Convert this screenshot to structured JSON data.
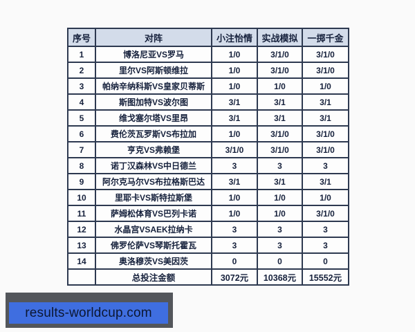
{
  "table": {
    "columns": [
      "序号",
      "对阵",
      "小注怡情",
      "实战模拟",
      "一掷千金"
    ],
    "rows": [
      [
        "1",
        "博洛尼亚VS罗马",
        "1/0",
        "3/1/0",
        "3/1/0"
      ],
      [
        "2",
        "里尔VS阿斯顿维拉",
        "1/0",
        "3/1/0",
        "3/1/0"
      ],
      [
        "3",
        "帕纳辛纳科斯VS皇家贝蒂斯",
        "1/0",
        "1/0",
        "1/0"
      ],
      [
        "4",
        "斯图加特VS波尔图",
        "3/1",
        "3/1",
        "3/1"
      ],
      [
        "5",
        "维戈塞尔塔VS里昂",
        "3/1",
        "3/1",
        "3/1"
      ],
      [
        "6",
        "费伦茨瓦罗斯VS布拉加",
        "1/0",
        "3/1/0",
        "3/1/0"
      ],
      [
        "7",
        "亨克VS弗赖堡",
        "3/1/0",
        "3/1/0",
        "3/1/0"
      ],
      [
        "8",
        "诺丁汉森林VS中日德兰",
        "3",
        "3",
        "3"
      ],
      [
        "9",
        "阿尔克马尔VS布拉格斯巴达",
        "3/1",
        "3/1",
        "3/1"
      ],
      [
        "10",
        "里耶卡VS斯特拉斯堡",
        "1/0",
        "1/0",
        "1/0"
      ],
      [
        "11",
        "萨姆松体育VS巴列卡诺",
        "1/0",
        "1/0",
        "3/1/0"
      ],
      [
        "12",
        "水晶宫VSAEK拉纳卡",
        "3",
        "3",
        "3"
      ],
      [
        "13",
        "佛罗伦萨VS琴斯托霍瓦",
        "3",
        "3",
        "3"
      ],
      [
        "14",
        "奥洛穆茨VS美因茨",
        "0",
        "0",
        "0"
      ]
    ],
    "footer": [
      "",
      "总投注金额",
      "3072元",
      "10368元",
      "15552元"
    ]
  },
  "watermark": {
    "text": "results-worldcup.com"
  },
  "colors": {
    "table_border": "#2d3950",
    "header_bg": "#d3dcea",
    "text": "#16213c",
    "watermark_bg": "#3f6ee0",
    "watermark_shadow": "#53565b",
    "watermark_text": "#0c1732"
  }
}
